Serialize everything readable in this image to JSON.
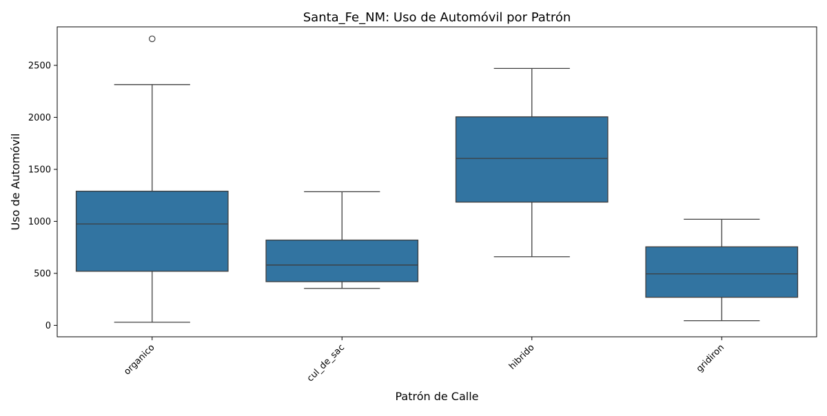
{
  "chart_data": {
    "type": "box",
    "title": "Santa_Fe_NM: Uso de Automóvil por Patrón",
    "xlabel": "Patrón de Calle",
    "ylabel": "Uso de Automóvil",
    "ylim": [
      -110,
      2870
    ],
    "yticks": [
      0,
      500,
      1000,
      1500,
      2000,
      2500
    ],
    "grid": false,
    "box_color": "#3274a1",
    "line_color": "#3d3d3d",
    "categories": [
      "organico",
      "cul_de_sac",
      "hibrido",
      "gridiron"
    ],
    "boxes": [
      {
        "category": "organico",
        "whisker_low": 30,
        "q1": 520,
        "median": 975,
        "q3": 1290,
        "whisker_high": 2315,
        "outliers": [
          2755
        ]
      },
      {
        "category": "cul_de_sac",
        "whisker_low": 355,
        "q1": 420,
        "median": 580,
        "q3": 820,
        "whisker_high": 1285,
        "outliers": []
      },
      {
        "category": "hibrido",
        "whisker_low": 660,
        "q1": 1185,
        "median": 1605,
        "q3": 2005,
        "whisker_high": 2470,
        "outliers": []
      },
      {
        "category": "gridiron",
        "whisker_low": 45,
        "q1": 270,
        "median": 495,
        "q3": 755,
        "whisker_high": 1020,
        "outliers": []
      }
    ]
  }
}
